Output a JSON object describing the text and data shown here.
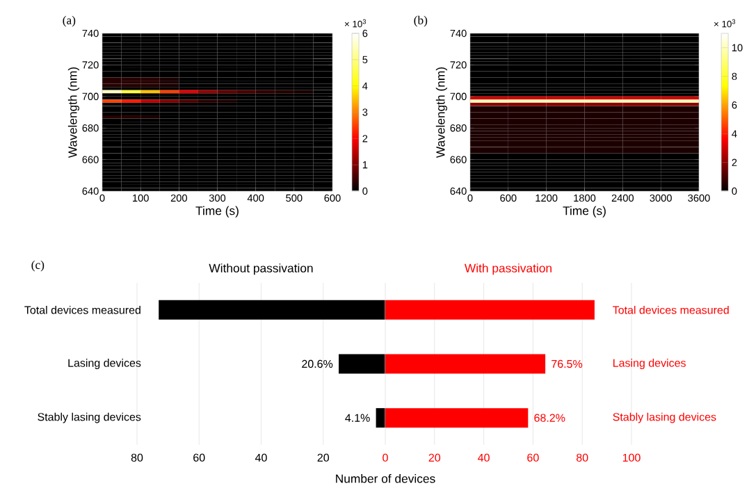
{
  "chart_data": [
    {
      "type": "heatmap",
      "title": "(a)",
      "xlabel": "Time (s)",
      "ylabel": "Wavelength (nm)",
      "clabel": "× 10$^{3}$",
      "xlim": [
        0,
        600
      ],
      "xticks": [
        0,
        100,
        200,
        300,
        400,
        500,
        600
      ],
      "ylim": [
        640,
        740
      ],
      "yticks": [
        640,
        660,
        680,
        700,
        720,
        740
      ],
      "clim": [
        0,
        6
      ],
      "cticks": [
        0,
        1,
        2,
        3,
        4,
        5,
        6
      ],
      "x": [
        25,
        75,
        125,
        175,
        225,
        275,
        325,
        375,
        425,
        475,
        525,
        575
      ],
      "y": [
        739,
        737,
        735,
        733,
        731,
        729,
        727,
        725,
        723,
        721,
        719,
        717,
        715,
        713,
        711,
        709,
        707,
        705,
        703,
        701,
        699,
        697,
        695,
        693,
        691,
        689,
        687,
        685,
        683,
        681,
        679,
        677,
        675,
        673,
        671,
        669,
        667,
        665,
        663,
        661,
        659,
        657,
        655,
        653,
        651,
        649,
        647,
        645,
        643,
        641
      ],
      "cells": [
        [
          0,
          0,
          0,
          0,
          0,
          0,
          0,
          0,
          0,
          0,
          0,
          0
        ],
        [
          0,
          0,
          0,
          0,
          0,
          0,
          0,
          0,
          0,
          0,
          0,
          0
        ],
        [
          0,
          0,
          0,
          0,
          0,
          0,
          0,
          0,
          0,
          0,
          0,
          0
        ],
        [
          0,
          0,
          0,
          0,
          0,
          0,
          0,
          0,
          0,
          0,
          0,
          0
        ],
        [
          0,
          0,
          0,
          0,
          0,
          0,
          0,
          0,
          0,
          0,
          0,
          0
        ],
        [
          0,
          0,
          0,
          0,
          0,
          0,
          0,
          0,
          0,
          0,
          0,
          0
        ],
        [
          0,
          0,
          0,
          0,
          0,
          0,
          0,
          0,
          0,
          0,
          0,
          0
        ],
        [
          0,
          0,
          0,
          0,
          0,
          0,
          0,
          0,
          0,
          0,
          0,
          0
        ],
        [
          0,
          0,
          0,
          0,
          0,
          0,
          0,
          0,
          0,
          0,
          0,
          0
        ],
        [
          0,
          0,
          0,
          0,
          0,
          0,
          0,
          0,
          0,
          0,
          0,
          0
        ],
        [
          0,
          0,
          0,
          0,
          0,
          0,
          0,
          0,
          0,
          0,
          0,
          0
        ],
        [
          0,
          0,
          0,
          0,
          0,
          0,
          0,
          0,
          0,
          0,
          0,
          0
        ],
        [
          0,
          0,
          0,
          0,
          0,
          0,
          0,
          0,
          0,
          0,
          0,
          0
        ],
        [
          0,
          0,
          0,
          0,
          0,
          0,
          0,
          0,
          0,
          0,
          0,
          0
        ],
        [
          0.3,
          0.3,
          0.3,
          0.2,
          0,
          0,
          0,
          0,
          0,
          0,
          0,
          0
        ],
        [
          0.3,
          0.3,
          0.3,
          0.2,
          0,
          0,
          0,
          0,
          0,
          0,
          0,
          0
        ],
        [
          0.3,
          0.3,
          0.3,
          0.2,
          0,
          0,
          0,
          0,
          0,
          0,
          0,
          0
        ],
        [
          0,
          0,
          0,
          0,
          0,
          0,
          0,
          0,
          0,
          0,
          0,
          0
        ],
        [
          5.5,
          4.5,
          3.5,
          2.5,
          1.8,
          1.2,
          0.8,
          0.6,
          0.4,
          0.3,
          0.2,
          0
        ],
        [
          0,
          0,
          0,
          0,
          0,
          0,
          0,
          0,
          0,
          0,
          0,
          0
        ],
        [
          0,
          0,
          0,
          0,
          0,
          0,
          0,
          0,
          0,
          0,
          0,
          0
        ],
        [
          2.5,
          2.2,
          1.5,
          1.0,
          0.6,
          0.3,
          0.2,
          0,
          0,
          0,
          0,
          0
        ],
        [
          0,
          0,
          0,
          0,
          0,
          0,
          0,
          0,
          0,
          0,
          0,
          0
        ],
        [
          0,
          0,
          0,
          0,
          0,
          0,
          0,
          0,
          0,
          0,
          0,
          0
        ],
        [
          0,
          0,
          0,
          0,
          0,
          0,
          0,
          0,
          0,
          0,
          0,
          0
        ],
        [
          0,
          0,
          0,
          0,
          0,
          0,
          0,
          0,
          0,
          0,
          0,
          0
        ],
        [
          0.3,
          0.3,
          0.2,
          0,
          0,
          0,
          0,
          0,
          0,
          0,
          0,
          0
        ],
        [
          0,
          0,
          0,
          0,
          0,
          0,
          0,
          0,
          0,
          0,
          0,
          0
        ],
        [
          0,
          0,
          0,
          0,
          0,
          0,
          0,
          0,
          0,
          0,
          0,
          0
        ],
        [
          0,
          0,
          0,
          0,
          0,
          0,
          0,
          0,
          0,
          0,
          0,
          0
        ],
        [
          0,
          0,
          0,
          0,
          0,
          0,
          0,
          0,
          0,
          0,
          0,
          0
        ],
        [
          0,
          0,
          0,
          0,
          0,
          0,
          0,
          0,
          0,
          0,
          0,
          0
        ],
        [
          0,
          0,
          0,
          0,
          0,
          0,
          0,
          0,
          0,
          0,
          0,
          0
        ],
        [
          0,
          0,
          0,
          0,
          0,
          0,
          0,
          0,
          0,
          0,
          0,
          0
        ],
        [
          0,
          0,
          0,
          0,
          0,
          0,
          0,
          0,
          0,
          0,
          0,
          0
        ],
        [
          0,
          0,
          0,
          0,
          0,
          0,
          0,
          0,
          0,
          0,
          0,
          0
        ],
        [
          0,
          0,
          0,
          0,
          0,
          0,
          0,
          0,
          0,
          0,
          0,
          0
        ],
        [
          0,
          0,
          0,
          0,
          0,
          0,
          0,
          0,
          0,
          0,
          0,
          0
        ],
        [
          0,
          0,
          0,
          0,
          0,
          0,
          0,
          0,
          0,
          0,
          0,
          0
        ],
        [
          0,
          0,
          0,
          0,
          0,
          0,
          0,
          0,
          0,
          0,
          0,
          0
        ],
        [
          0,
          0,
          0,
          0,
          0,
          0,
          0,
          0,
          0,
          0,
          0,
          0
        ],
        [
          0,
          0,
          0,
          0,
          0,
          0,
          0,
          0,
          0,
          0,
          0,
          0
        ],
        [
          0,
          0,
          0,
          0,
          0,
          0,
          0,
          0,
          0,
          0,
          0,
          0
        ],
        [
          0,
          0,
          0,
          0,
          0,
          0,
          0,
          0,
          0,
          0,
          0,
          0
        ],
        [
          0,
          0,
          0,
          0,
          0,
          0,
          0,
          0,
          0,
          0,
          0,
          0
        ],
        [
          0,
          0,
          0,
          0,
          0,
          0,
          0,
          0,
          0,
          0,
          0,
          0
        ],
        [
          0,
          0,
          0,
          0,
          0,
          0,
          0,
          0,
          0,
          0,
          0,
          0
        ],
        [
          0,
          0,
          0,
          0,
          0,
          0,
          0,
          0,
          0,
          0,
          0,
          0
        ],
        [
          0,
          0,
          0,
          0,
          0,
          0,
          0,
          0,
          0,
          0,
          0,
          0
        ],
        [
          0,
          0,
          0,
          0,
          0,
          0,
          0,
          0,
          0,
          0,
          0,
          0
        ]
      ]
    },
    {
      "type": "heatmap",
      "title": "(b)",
      "xlabel": "Time (s)",
      "ylabel": "Wavelength (nm)",
      "clabel": "× 10$^{3}$",
      "xlim": [
        0,
        3600
      ],
      "xticks": [
        0,
        600,
        1200,
        1800,
        2400,
        3000,
        3600
      ],
      "ylim": [
        640,
        740
      ],
      "yticks": [
        640,
        660,
        680,
        700,
        720,
        740
      ],
      "clim": [
        0,
        11
      ],
      "cticks": [
        0,
        2,
        4,
        6,
        8,
        10
      ],
      "x": [
        300,
        900,
        1500,
        2100,
        2700,
        3300
      ],
      "y": [
        739,
        737,
        735,
        733,
        731,
        729,
        727,
        725,
        723,
        721,
        719,
        717,
        715,
        713,
        711,
        709,
        707,
        705,
        703,
        701,
        699,
        697,
        695,
        693,
        691,
        689,
        687,
        685,
        683,
        681,
        679,
        677,
        675,
        673,
        671,
        669,
        667,
        665,
        663,
        661,
        659,
        657,
        655,
        653,
        651,
        649,
        647,
        645,
        643,
        641
      ],
      "cells": [
        [
          0,
          0,
          0,
          0,
          0,
          0
        ],
        [
          0,
          0,
          0,
          0,
          0,
          0
        ],
        [
          0,
          0,
          0,
          0,
          0,
          0
        ],
        [
          0,
          0,
          0,
          0,
          0,
          0
        ],
        [
          0,
          0,
          0,
          0,
          0,
          0
        ],
        [
          0,
          0,
          0,
          0,
          0,
          0
        ],
        [
          0,
          0,
          0,
          0,
          0,
          0
        ],
        [
          0,
          0,
          0,
          0,
          0,
          0
        ],
        [
          0,
          0,
          0,
          0,
          0,
          0
        ],
        [
          0,
          0,
          0,
          0,
          0,
          0
        ],
        [
          0,
          0,
          0,
          0,
          0,
          0
        ],
        [
          0,
          0,
          0,
          0,
          0,
          0
        ],
        [
          0,
          0,
          0,
          0,
          0,
          0
        ],
        [
          0,
          0,
          0,
          0,
          0,
          0
        ],
        [
          0,
          0,
          0,
          0,
          0,
          0
        ],
        [
          0,
          0,
          0,
          0,
          0,
          0
        ],
        [
          0,
          0,
          0,
          0,
          0,
          0
        ],
        [
          0,
          0,
          0,
          0,
          0,
          0
        ],
        [
          0,
          0,
          0,
          0,
          0,
          0
        ],
        [
          0,
          0,
          0,
          0,
          0,
          0
        ],
        [
          3,
          3,
          3,
          3,
          3,
          3
        ],
        [
          10,
          10,
          10,
          10,
          10,
          10
        ],
        [
          2,
          2,
          2,
          2,
          2,
          2
        ],
        [
          0.4,
          0.4,
          0.4,
          0.4,
          0.4,
          0.4
        ],
        [
          0.4,
          0.4,
          0.4,
          0.4,
          0.4,
          0.4
        ],
        [
          0.4,
          0.4,
          0.4,
          0.4,
          0.4,
          0.4
        ],
        [
          0.4,
          0.4,
          0.4,
          0.4,
          0.4,
          0.4
        ],
        [
          0.4,
          0.4,
          0.4,
          0.4,
          0.4,
          0.4
        ],
        [
          0.4,
          0.4,
          0.4,
          0.4,
          0.4,
          0.4
        ],
        [
          0.4,
          0.4,
          0.4,
          0.4,
          0.4,
          0.4
        ],
        [
          0.4,
          0.4,
          0.4,
          0.4,
          0.4,
          0.4
        ],
        [
          0.4,
          0.4,
          0.4,
          0.4,
          0.4,
          0.4
        ],
        [
          0.4,
          0.4,
          0.4,
          0.4,
          0.4,
          0.4
        ],
        [
          0.4,
          0.4,
          0.4,
          0.4,
          0.4,
          0.4
        ],
        [
          0.4,
          0.4,
          0.4,
          0.4,
          0.4,
          0.4
        ],
        [
          0.4,
          0.4,
          0.4,
          0.4,
          0.4,
          0.4
        ],
        [
          0.4,
          0.4,
          0.4,
          0.4,
          0.4,
          0.4
        ],
        [
          0.4,
          0.4,
          0.4,
          0.4,
          0.4,
          0.4
        ],
        [
          0,
          0,
          0,
          0,
          0,
          0
        ],
        [
          0,
          0,
          0,
          0,
          0,
          0
        ],
        [
          0,
          0,
          0,
          0,
          0,
          0
        ],
        [
          0,
          0,
          0,
          0,
          0,
          0
        ],
        [
          0,
          0,
          0,
          0,
          0,
          0
        ],
        [
          0,
          0,
          0,
          0,
          0,
          0
        ],
        [
          0,
          0,
          0,
          0,
          0,
          0
        ],
        [
          0,
          0,
          0,
          0,
          0,
          0
        ],
        [
          0,
          0,
          0,
          0,
          0,
          0
        ],
        [
          0,
          0,
          0,
          0,
          0,
          0
        ],
        [
          0,
          0,
          0,
          0,
          0,
          0
        ],
        [
          0,
          0,
          0,
          0,
          0,
          0
        ]
      ]
    },
    {
      "type": "bar",
      "orientation": "horizontal",
      "title": "Without passivation",
      "xlabel": "Number of devices",
      "annotations": [
        "(c)",
        {
          "text": "20.6%",
          "x": 15,
          "y": "Lasing devices"
        },
        {
          "text": "4.1%",
          "x": 3,
          "y": "Stably lasing devices"
        }
      ],
      "categories": [
        "Total devices measured",
        "Lasing devices",
        "Stably lasing devices"
      ],
      "values": [
        73,
        15,
        3
      ],
      "color": "#000000",
      "xlim": [
        80,
        0
      ],
      "xticks": [
        80,
        60,
        40,
        20
      ],
      "grid": "x"
    },
    {
      "type": "bar",
      "orientation": "horizontal",
      "title": "With passivation",
      "categories": [
        "Total devices measured",
        "Lasing devices",
        "Stably lasing devices"
      ],
      "values": [
        85,
        65,
        58
      ],
      "color": "#ff0000",
      "annotations": [
        {
          "text": "76.5%",
          "x": 65,
          "y": "Lasing devices"
        },
        {
          "text": "68.2%",
          "x": 58,
          "y": "Stably lasing devices"
        }
      ],
      "xlim": [
        0,
        100
      ],
      "xticks": [
        0,
        20,
        40,
        60,
        80,
        100
      ],
      "grid": "x"
    }
  ]
}
